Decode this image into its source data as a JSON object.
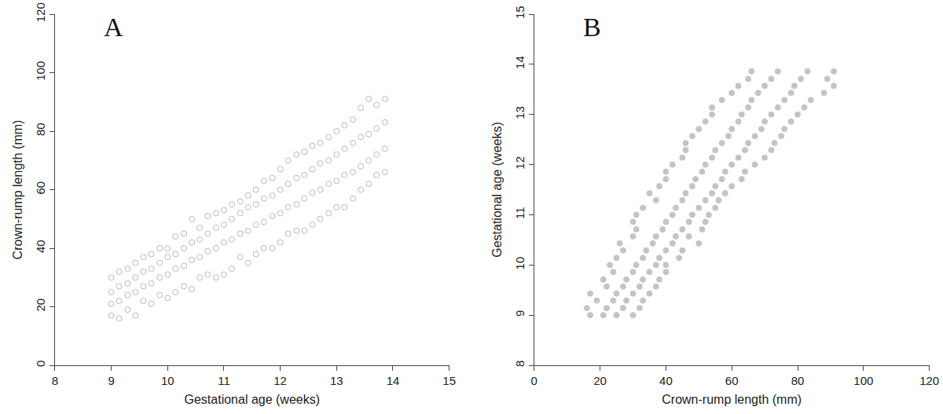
{
  "chart_data": [
    {
      "type": "scatter",
      "title": "A",
      "x_label": "Gestational age (weeks)",
      "y_label": "Crown-rump length (mm)",
      "marker": "circle-open",
      "color": "#b8b8b8",
      "grid": false,
      "xlim": [
        8,
        15
      ],
      "xticks": [
        8,
        9,
        10,
        11,
        12,
        13,
        14,
        15
      ],
      "ylim": [
        0,
        120
      ],
      "yticks": [
        0,
        20,
        40,
        60,
        80,
        100,
        120
      ],
      "x": [
        9,
        9,
        9,
        9,
        9.14,
        9.14,
        9.14,
        9.14,
        9.29,
        9.29,
        9.29,
        9.29,
        9.43,
        9.43,
        9.43,
        9.43,
        9.57,
        9.57,
        9.57,
        9.57,
        9.71,
        9.71,
        9.71,
        9.71,
        9.86,
        9.86,
        9.86,
        9.86,
        10,
        10,
        10,
        10,
        10.14,
        10.14,
        10.14,
        10.14,
        10.29,
        10.29,
        10.29,
        10.29,
        10.43,
        10.43,
        10.43,
        10.43,
        10.57,
        10.57,
        10.57,
        10.57,
        10.71,
        10.71,
        10.71,
        10.71,
        10.86,
        10.86,
        10.86,
        10.86,
        11,
        11,
        11,
        11,
        11.14,
        11.14,
        11.14,
        11.14,
        11.29,
        11.29,
        11.29,
        11.29,
        11.43,
        11.43,
        11.43,
        11.43,
        11.57,
        11.57,
        11.57,
        11.57,
        11.71,
        11.71,
        11.71,
        11.71,
        11.86,
        11.86,
        11.86,
        11.86,
        12,
        12,
        12,
        12,
        12.14,
        12.14,
        12.14,
        12.14,
        12.29,
        12.29,
        12.29,
        12.29,
        12.43,
        12.43,
        12.43,
        12.43,
        12.57,
        12.57,
        12.57,
        12.57,
        12.71,
        12.71,
        12.71,
        12.71,
        12.86,
        12.86,
        12.86,
        12.86,
        13,
        13,
        13,
        13,
        13.14,
        13.14,
        13.14,
        13.14,
        13.29,
        13.29,
        13.29,
        13.29,
        13.43,
        13.43,
        13.43,
        13.43,
        13.57,
        13.57,
        13.57,
        13.57,
        13.71,
        13.71,
        13.71,
        13.71,
        13.86,
        13.86,
        13.86,
        13.86
      ],
      "values": [
        17,
        21,
        25,
        30,
        16,
        22,
        27,
        32,
        19,
        24,
        28,
        33,
        17,
        25,
        30,
        35,
        22,
        27,
        32,
        37,
        21,
        28,
        33,
        38,
        24,
        30,
        35,
        40,
        23,
        31,
        37,
        40,
        25,
        33,
        38,
        44,
        27,
        34,
        40,
        45,
        26,
        36,
        42,
        50,
        30,
        37,
        43,
        47,
        31,
        39,
        45,
        51,
        30,
        40,
        47,
        52,
        31,
        42,
        48,
        53,
        33,
        43,
        50,
        55,
        37,
        45,
        52,
        56,
        35,
        46,
        54,
        58,
        38,
        48,
        55,
        60,
        40,
        49,
        57,
        63,
        40,
        51,
        58,
        64,
        42,
        52,
        60,
        67,
        45,
        54,
        62,
        70,
        46,
        55,
        64,
        72,
        46,
        57,
        65,
        73,
        48,
        59,
        67,
        75,
        50,
        60,
        69,
        76,
        52,
        62,
        70,
        78,
        54,
        63,
        72,
        80,
        54,
        65,
        74,
        82,
        57,
        66,
        76,
        84,
        60,
        68,
        78,
        88,
        62,
        70,
        79,
        91,
        65,
        72,
        81,
        89,
        66,
        74,
        83,
        91
      ]
    },
    {
      "type": "scatter",
      "title": "B",
      "x_label": "Crown-rump length (mm)",
      "y_label": "Gestational age (weeks)",
      "marker": "circle",
      "color": "#c4c4c4",
      "grid": false,
      "xlim": [
        0,
        120
      ],
      "xticks": [
        0,
        20,
        40,
        60,
        80,
        100,
        120
      ],
      "ylim": [
        8,
        15
      ],
      "yticks": [
        8,
        9,
        10,
        11,
        12,
        13,
        14,
        15
      ],
      "x": [
        17,
        21,
        25,
        30,
        16,
        22,
        27,
        32,
        19,
        24,
        28,
        33,
        17,
        25,
        30,
        35,
        22,
        27,
        32,
        37,
        21,
        28,
        33,
        38,
        24,
        30,
        35,
        40,
        23,
        31,
        37,
        40,
        25,
        33,
        38,
        44,
        27,
        34,
        40,
        45,
        26,
        36,
        42,
        50,
        30,
        37,
        43,
        47,
        31,
        39,
        45,
        51,
        30,
        40,
        47,
        52,
        31,
        42,
        48,
        53,
        33,
        43,
        50,
        55,
        37,
        45,
        52,
        56,
        35,
        46,
        54,
        58,
        38,
        48,
        55,
        60,
        40,
        49,
        57,
        63,
        40,
        51,
        58,
        64,
        42,
        52,
        60,
        67,
        45,
        54,
        62,
        70,
        46,
        55,
        64,
        72,
        46,
        57,
        65,
        73,
        48,
        59,
        67,
        75,
        50,
        60,
        69,
        76,
        52,
        62,
        70,
        78,
        54,
        63,
        72,
        80,
        54,
        65,
        74,
        82,
        57,
        66,
        76,
        84,
        60,
        68,
        78,
        88,
        62,
        70,
        79,
        91,
        65,
        72,
        81,
        89,
        66,
        74,
        83,
        91
      ],
      "values": [
        9,
        9,
        9,
        9,
        9.14,
        9.14,
        9.14,
        9.14,
        9.29,
        9.29,
        9.29,
        9.29,
        9.43,
        9.43,
        9.43,
        9.43,
        9.57,
        9.57,
        9.57,
        9.57,
        9.71,
        9.71,
        9.71,
        9.71,
        9.86,
        9.86,
        9.86,
        9.86,
        10,
        10,
        10,
        10,
        10.14,
        10.14,
        10.14,
        10.14,
        10.29,
        10.29,
        10.29,
        10.29,
        10.43,
        10.43,
        10.43,
        10.43,
        10.57,
        10.57,
        10.57,
        10.57,
        10.71,
        10.71,
        10.71,
        10.71,
        10.86,
        10.86,
        10.86,
        10.86,
        11,
        11,
        11,
        11,
        11.14,
        11.14,
        11.14,
        11.14,
        11.29,
        11.29,
        11.29,
        11.29,
        11.43,
        11.43,
        11.43,
        11.43,
        11.57,
        11.57,
        11.57,
        11.57,
        11.71,
        11.71,
        11.71,
        11.71,
        11.86,
        11.86,
        11.86,
        11.86,
        12,
        12,
        12,
        12,
        12.14,
        12.14,
        12.14,
        12.14,
        12.29,
        12.29,
        12.29,
        12.29,
        12.43,
        12.43,
        12.43,
        12.43,
        12.57,
        12.57,
        12.57,
        12.57,
        12.71,
        12.71,
        12.71,
        12.71,
        12.86,
        12.86,
        12.86,
        12.86,
        13,
        13,
        13,
        13,
        13.14,
        13.14,
        13.14,
        13.14,
        13.29,
        13.29,
        13.29,
        13.29,
        13.43,
        13.43,
        13.43,
        13.43,
        13.57,
        13.57,
        13.57,
        13.57,
        13.71,
        13.71,
        13.71,
        13.71,
        13.86,
        13.86,
        13.86,
        13.86
      ]
    }
  ]
}
